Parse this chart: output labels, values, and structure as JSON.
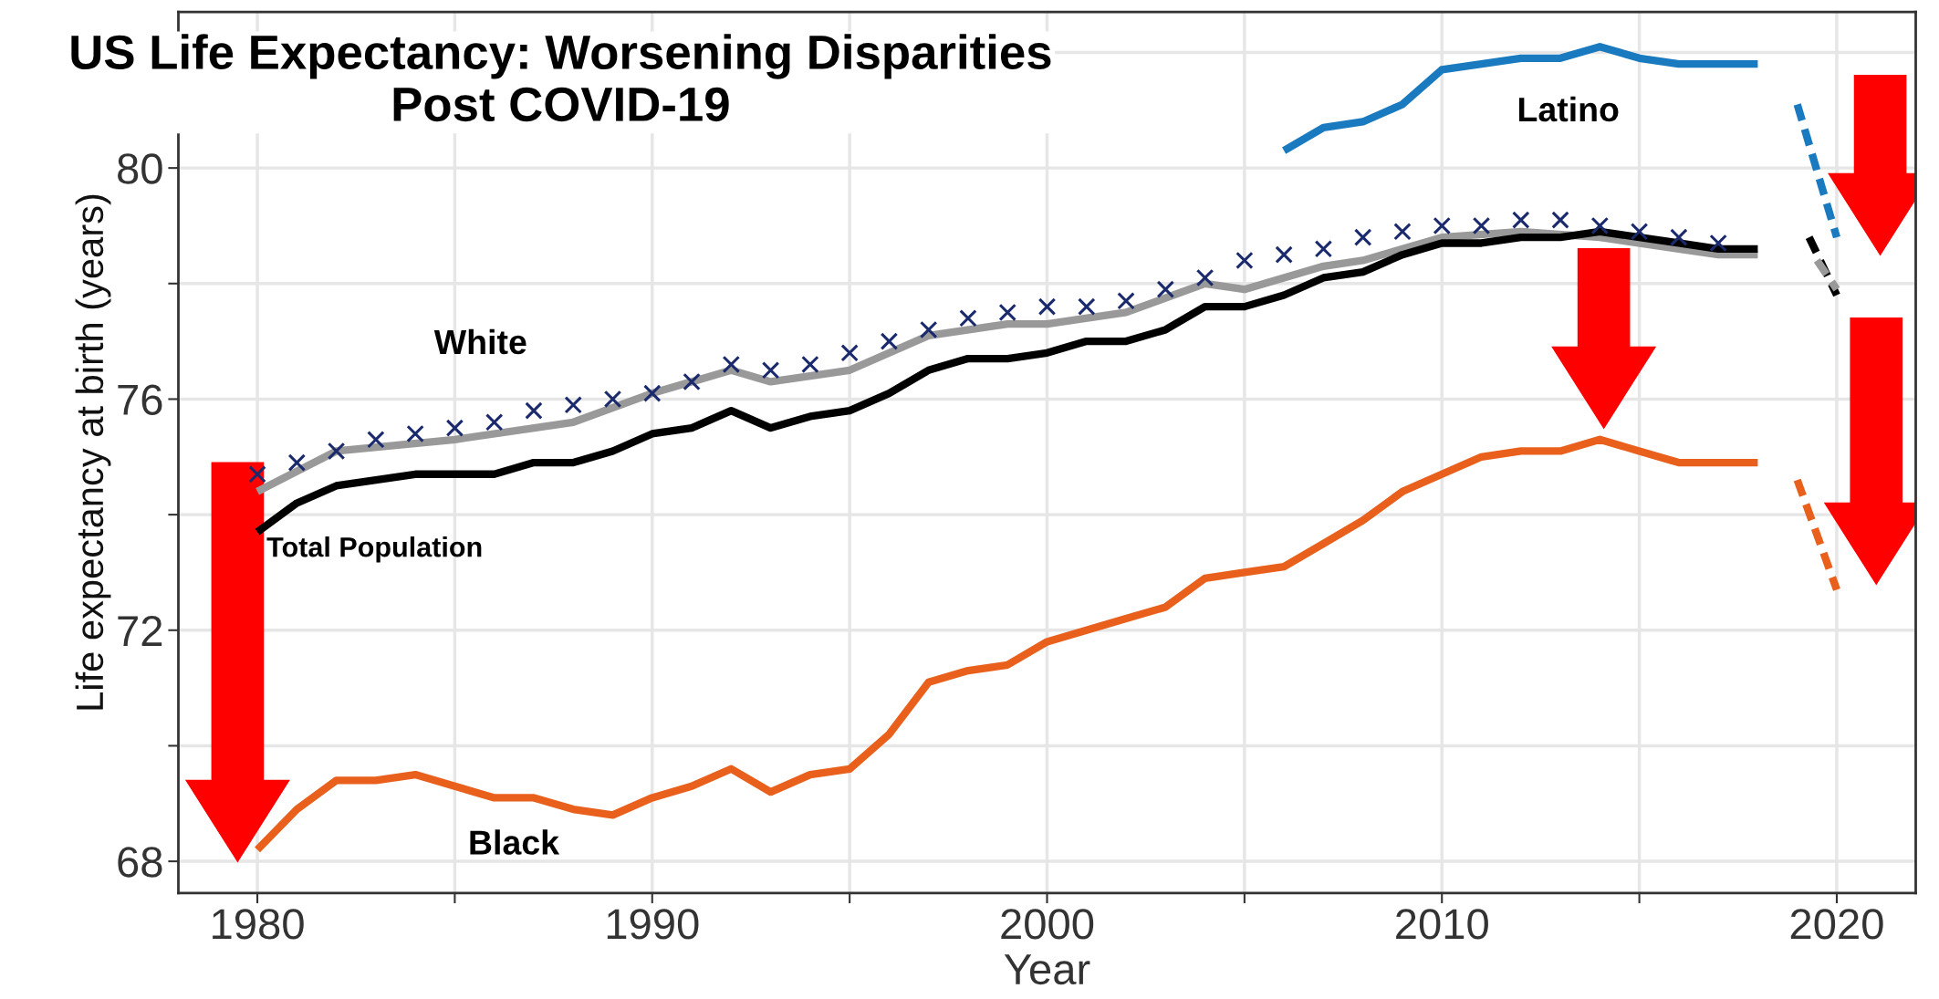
{
  "chart_data": {
    "type": "line",
    "title": "US Life Expectancy: Worsening Disparities\nPost COVID-19",
    "xlabel": "Year",
    "ylabel": "Life expectancy at birth (years)",
    "xlim": [
      1978,
      2022
    ],
    "xticks": [
      1980,
      {
        "value": 1985,
        "label": null
      },
      1990,
      {
        "value": 1995,
        "label": null
      },
      2000,
      {
        "value": 2005,
        "label": null
      },
      2010,
      {
        "value": 2015,
        "label": null
      },
      2020
    ],
    "ylim": [
      67.45,
      82.7
    ],
    "yticks": [
      68,
      {
        "value": 70,
        "label": null
      },
      72,
      {
        "value": 74,
        "label": null
      },
      76,
      {
        "value": 78,
        "label": null
      },
      80,
      {
        "value": 82,
        "label": null
      }
    ],
    "grid": true,
    "legend": false,
    "series": [
      {
        "color": "#999999",
        "x": [
          1980,
          1982,
          1985,
          1988,
          1990,
          1992,
          1993,
          1995,
          1997,
          1999,
          2000,
          2002,
          2004,
          2005,
          2007,
          2008,
          2010,
          2012,
          2014,
          2016,
          2017,
          2018
        ],
        "values": [
          74.4,
          75.1,
          75.3,
          75.6,
          76.1,
          76.5,
          76.3,
          76.5,
          77.1,
          77.3,
          77.3,
          77.5,
          78.0,
          77.9,
          78.3,
          78.4,
          78.8,
          78.9,
          78.8,
          78.6,
          78.5,
          78.5
        ]
      },
      {
        "color": "#000000",
        "x": [
          1980,
          1981,
          1982,
          1983,
          1984,
          1985,
          1986,
          1987,
          1988,
          1989,
          1990,
          1991,
          1992,
          1993,
          1994,
          1995,
          1996,
          1997,
          1998,
          1999,
          2000,
          2001,
          2002,
          2003,
          2004,
          2005,
          2006,
          2007,
          2008,
          2009,
          2010,
          2011,
          2012,
          2013,
          2014,
          2015,
          2016,
          2017,
          2018
        ],
        "values": [
          73.7,
          74.2,
          74.5,
          74.6,
          74.7,
          74.7,
          74.7,
          74.9,
          74.9,
          75.1,
          75.4,
          75.5,
          75.8,
          75.5,
          75.7,
          75.8,
          76.1,
          76.5,
          76.7,
          76.7,
          76.8,
          77.0,
          77.0,
          77.2,
          77.6,
          77.6,
          77.8,
          78.1,
          78.2,
          78.5,
          78.7,
          78.7,
          78.8,
          78.8,
          78.9,
          78.8,
          78.7,
          78.6,
          78.6
        ]
      },
      {
        "type": "scatter",
        "marker": "cross",
        "color": "#1a2a6c",
        "x": [
          1980,
          1981,
          1982,
          1983,
          1984,
          1985,
          1986,
          1987,
          1988,
          1989,
          1990,
          1991,
          1992,
          1993,
          1994,
          1995,
          1996,
          1997,
          1998,
          1999,
          2000,
          2001,
          2002,
          2003,
          2004,
          2005,
          2006,
          2007,
          2008,
          2009,
          2010,
          2011,
          2012,
          2013,
          2014,
          2015,
          2016,
          2017
        ],
        "values": [
          74.7,
          74.9,
          75.1,
          75.3,
          75.4,
          75.5,
          75.6,
          75.8,
          75.9,
          76.0,
          76.1,
          76.3,
          76.6,
          76.5,
          76.6,
          76.8,
          77.0,
          77.2,
          77.4,
          77.5,
          77.6,
          77.6,
          77.7,
          77.9,
          78.1,
          78.4,
          78.5,
          78.6,
          78.8,
          78.9,
          79.0,
          79.0,
          79.1,
          79.1,
          79.0,
          78.9,
          78.8,
          78.7
        ]
      },
      {
        "color": "#1a7abf",
        "x": [
          2006,
          2007,
          2008,
          2009,
          2010,
          2011,
          2012,
          2013,
          2014,
          2015,
          2016,
          2017,
          2018
        ],
        "values": [
          80.3,
          80.7,
          80.8,
          81.1,
          81.7,
          81.8,
          81.9,
          81.9,
          82.1,
          81.9,
          81.8,
          81.8,
          81.8
        ]
      },
      {
        "color": "#e8601c",
        "x": [
          1980,
          1981,
          1982,
          1983,
          1984,
          1985,
          1986,
          1987,
          1988,
          1989,
          1990,
          1991,
          1992,
          1993,
          1994,
          1995,
          1996,
          1997,
          1998,
          1999,
          2000,
          2001,
          2002,
          2003,
          2004,
          2005,
          2006,
          2007,
          2008,
          2009,
          2010,
          2011,
          2012,
          2013,
          2014,
          2015,
          2016,
          2017,
          2018
        ],
        "values": [
          68.2,
          68.9,
          69.4,
          69.4,
          69.5,
          69.3,
          69.1,
          69.1,
          68.9,
          68.8,
          69.1,
          69.3,
          69.6,
          69.2,
          69.5,
          69.6,
          70.2,
          71.1,
          71.3,
          71.4,
          71.8,
          72.0,
          72.2,
          72.4,
          72.9,
          73.0,
          73.1,
          73.5,
          73.9,
          74.4,
          74.7,
          75.0,
          75.1,
          75.1,
          75.3,
          75.1,
          74.9,
          74.9,
          74.9
        ]
      },
      {
        "color": "#1a7abf",
        "line_style": "dashed",
        "x": [
          2019,
          2020
        ],
        "values": [
          81.1,
          78.8
        ]
      },
      {
        "color": "#000000",
        "line_style": "dashed",
        "x": [
          2019.3,
          2020
        ],
        "values": [
          78.8,
          77.8
        ]
      },
      {
        "color": "#999999",
        "line_style": "dashed",
        "x": [
          2019.5,
          2020
        ],
        "values": [
          78.4,
          77.9
        ]
      },
      {
        "color": "#e8601c",
        "line_style": "dashed",
        "x": [
          2019,
          2020
        ],
        "values": [
          74.6,
          72.7
        ]
      }
    ],
    "annotations": [
      "White",
      "Total Population",
      "Black",
      "Latino"
    ]
  }
}
